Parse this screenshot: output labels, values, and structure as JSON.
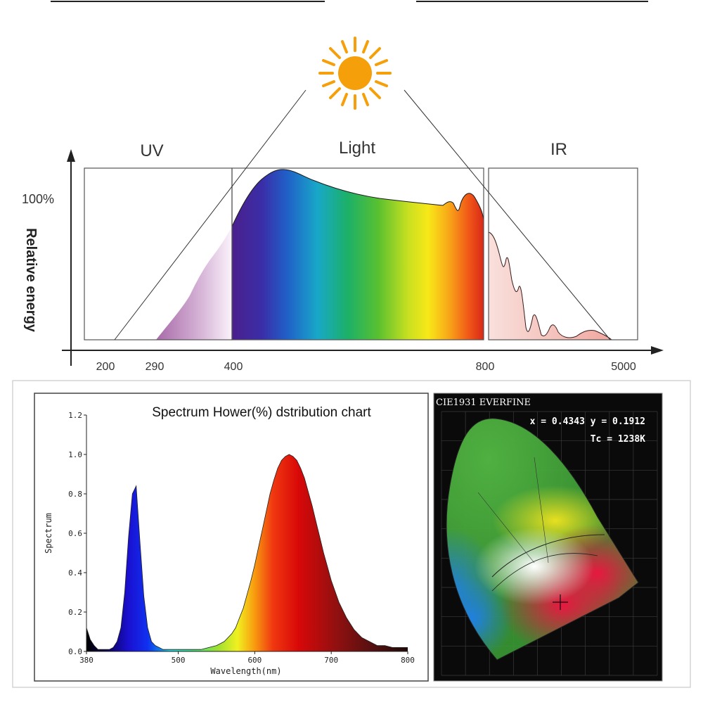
{
  "top_panel": {
    "region_labels": {
      "uv": "UV",
      "light": "Light",
      "ir": "IR"
    },
    "y_top_label": "100%",
    "y_axis_title": "Relative energy",
    "x_ticks": [
      "200",
      "290",
      "400",
      "800",
      "5000"
    ]
  },
  "spd_panel": {
    "title": "Spectrum Hower(%) dstribution chart",
    "xlabel": "Wavelength(nm)",
    "ylabel": "Spectrum"
  },
  "cie_panel": {
    "header": "CIE1931 EVERFINE",
    "coords": "x = 0.4343 y = 0.1912",
    "tc": "Tc = 1238K"
  },
  "chart_data": [
    {
      "type": "area",
      "x_ticks": [
        "200",
        "290",
        "400",
        "800",
        "5000"
      ],
      "regions": [
        "UV",
        "Light",
        "IR"
      ],
      "y_top": "100%",
      "ylabel": "Relative energy",
      "series": [
        {
          "points": [
            [
              200,
              0
            ],
            [
              290,
              0.05
            ],
            [
              340,
              0.45
            ],
            [
              400,
              0.67
            ],
            [
              430,
              0.9
            ],
            [
              450,
              1.0
            ],
            [
              470,
              0.99
            ],
            [
              520,
              0.9
            ],
            [
              600,
              0.82
            ],
            [
              700,
              0.8
            ],
            [
              760,
              0.78
            ],
            [
              775,
              0.82
            ],
            [
              785,
              0.74
            ],
            [
              795,
              0.86
            ],
            [
              810,
              0.9
            ],
            [
              830,
              0.82
            ],
            [
              850,
              0.75
            ],
            [
              900,
              0.46
            ],
            [
              1000,
              0.25
            ],
            [
              1500,
              0.09
            ],
            [
              2000,
              0.15
            ],
            [
              2500,
              0.03
            ],
            [
              3000,
              0.08
            ],
            [
              3500,
              0.02
            ],
            [
              4500,
              0.05
            ],
            [
              5000,
              0
            ]
          ]
        }
      ]
    },
    {
      "type": "area",
      "title": "Spectrum Hower(%) dstribution chart",
      "xlabel": "Wavelength(nm)",
      "ylabel": "Spectrum",
      "xlim": [
        380,
        800
      ],
      "ylim": [
        0,
        1.2
      ],
      "x_ticks": [
        380,
        500,
        600,
        700,
        800
      ],
      "y_ticks": [
        "0.0",
        "0.2",
        "0.4",
        "0.6",
        "0.8",
        "1.0",
        "1.2"
      ],
      "x": [
        380,
        385,
        390,
        395,
        400,
        405,
        410,
        415,
        420,
        425,
        430,
        435,
        440,
        445,
        450,
        455,
        460,
        465,
        470,
        475,
        480,
        490,
        500,
        510,
        520,
        530,
        540,
        550,
        560,
        570,
        575,
        580,
        585,
        590,
        595,
        600,
        605,
        610,
        615,
        620,
        625,
        630,
        635,
        640,
        645,
        650,
        655,
        660,
        665,
        670,
        675,
        680,
        685,
        690,
        695,
        700,
        710,
        720,
        730,
        740,
        750,
        760,
        770,
        780,
        790,
        800
      ],
      "values": [
        0.12,
        0.06,
        0.03,
        0.01,
        0.01,
        0.01,
        0.01,
        0.02,
        0.05,
        0.12,
        0.3,
        0.58,
        0.8,
        0.84,
        0.55,
        0.28,
        0.12,
        0.05,
        0.03,
        0.02,
        0.01,
        0.01,
        0.01,
        0.01,
        0.01,
        0.01,
        0.02,
        0.03,
        0.05,
        0.09,
        0.12,
        0.17,
        0.22,
        0.29,
        0.36,
        0.44,
        0.53,
        0.62,
        0.71,
        0.8,
        0.87,
        0.93,
        0.97,
        0.99,
        1.0,
        0.99,
        0.97,
        0.93,
        0.88,
        0.81,
        0.74,
        0.66,
        0.58,
        0.5,
        0.43,
        0.36,
        0.25,
        0.17,
        0.11,
        0.07,
        0.05,
        0.03,
        0.03,
        0.02,
        0.02,
        0.02
      ]
    },
    {
      "type": "scatter",
      "title": "CIE1931 EVERFINE",
      "points": [
        {
          "x": 0.4343,
          "y": 0.1912
        }
      ],
      "annotations": [
        "x = 0.4343 y = 0.1912",
        "Tc = 1238K"
      ]
    }
  ]
}
